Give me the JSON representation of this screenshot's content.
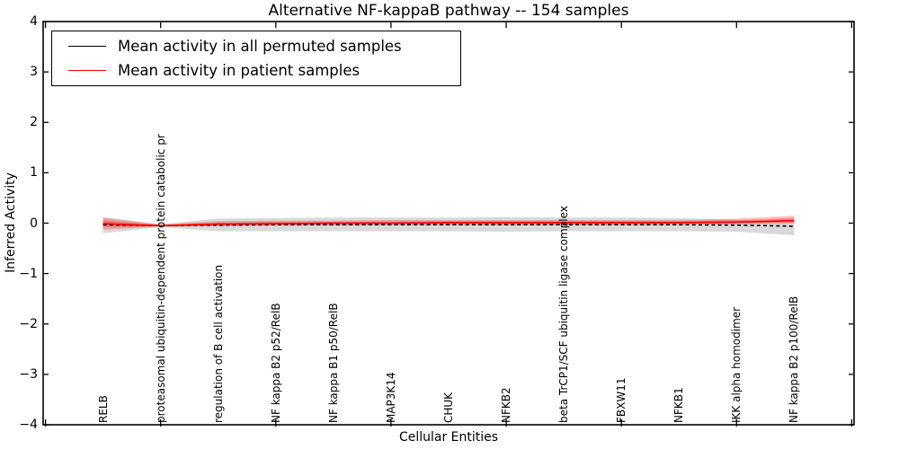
{
  "title": "Alternative NF-kappaB pathway -- 154 samples",
  "axes": {
    "xlabel": "Cellular Entities",
    "ylabel": "Inferred Activity"
  },
  "legend": {
    "items": [
      {
        "label": "Mean activity in all permuted samples",
        "color": "#000000",
        "style": "dashed"
      },
      {
        "label": "Mean activity in patient samples",
        "color": "#ff0000",
        "style": "solid"
      }
    ],
    "position": "upper left"
  },
  "colors": {
    "permuted_line": "#000000",
    "permuted_band": "#808080",
    "patient_line": "#ff0000",
    "patient_band": "#ff0000",
    "spine": "#000000"
  },
  "chart_data": {
    "type": "line",
    "title": "Alternative NF-kappaB pathway -- 154 samples",
    "xlabel": "Cellular Entities",
    "ylabel": "Inferred Activity",
    "ylim": [
      -4,
      4
    ],
    "xlim": [
      -1.04,
      13.04
    ],
    "grid": false,
    "legend_position": "upper left",
    "y_ticks": [
      4,
      3,
      2,
      1,
      0,
      -1,
      -2,
      -3,
      -4
    ],
    "y_tick_labels": [
      "4",
      "3",
      "2",
      "1",
      "0",
      "−1",
      "−2",
      "−3",
      "−4"
    ],
    "x_tick_data_positions": [
      -1,
      1,
      3,
      5,
      7,
      9,
      11,
      13
    ],
    "categories": [
      "RELB",
      "proteasomal ubiquitin-dependent protein catabolic pr",
      "regulation of B cell activation",
      "NF kappa B2 p52/RelB",
      "NF kappa B1 p50/RelB",
      "MAP3K14",
      "CHUK",
      "NFKB2",
      "beta TrCP1/SCF ubiquitin ligase complex",
      "FBXW11",
      "NFKB1",
      "IKK alpha homodimer",
      "NF kappa B2 p100/RelB"
    ],
    "series": [
      {
        "name": "Mean activity in all permuted samples",
        "color": "#000000",
        "style": "dashed",
        "values": [
          -0.03,
          -0.05,
          -0.04,
          -0.03,
          -0.03,
          -0.03,
          -0.03,
          -0.03,
          -0.03,
          -0.03,
          -0.03,
          -0.04,
          -0.06
        ]
      },
      {
        "name": "Mean activity in patient samples",
        "color": "#ff0000",
        "style": "solid",
        "values": [
          -0.01,
          -0.05,
          -0.02,
          -0.01,
          0.0,
          0.0,
          0.01,
          0.01,
          0.01,
          0.01,
          0.01,
          0.02,
          0.05
        ]
      }
    ],
    "bands": [
      {
        "name": "permuted-std-band",
        "color": "#808080",
        "opacity": 0.3,
        "upper": [
          0.12,
          -0.02,
          0.09,
          0.1,
          0.11,
          0.11,
          0.11,
          0.12,
          0.11,
          0.11,
          0.1,
          0.07,
          0.03
        ],
        "lower": [
          -0.2,
          -0.08,
          -0.16,
          -0.16,
          -0.16,
          -0.16,
          -0.16,
          -0.17,
          -0.16,
          -0.16,
          -0.16,
          -0.17,
          -0.24
        ]
      },
      {
        "name": "patient-std-band",
        "color": "#ff0000",
        "opacity": 0.24,
        "upper": [
          0.11,
          -0.03,
          0.04,
          0.05,
          0.05,
          0.06,
          0.06,
          0.06,
          0.06,
          0.06,
          0.06,
          0.09,
          0.15
        ],
        "lower": [
          -0.13,
          -0.07,
          -0.06,
          -0.05,
          -0.05,
          -0.04,
          -0.04,
          -0.04,
          -0.04,
          -0.04,
          -0.03,
          -0.02,
          -0.01
        ]
      }
    ]
  }
}
